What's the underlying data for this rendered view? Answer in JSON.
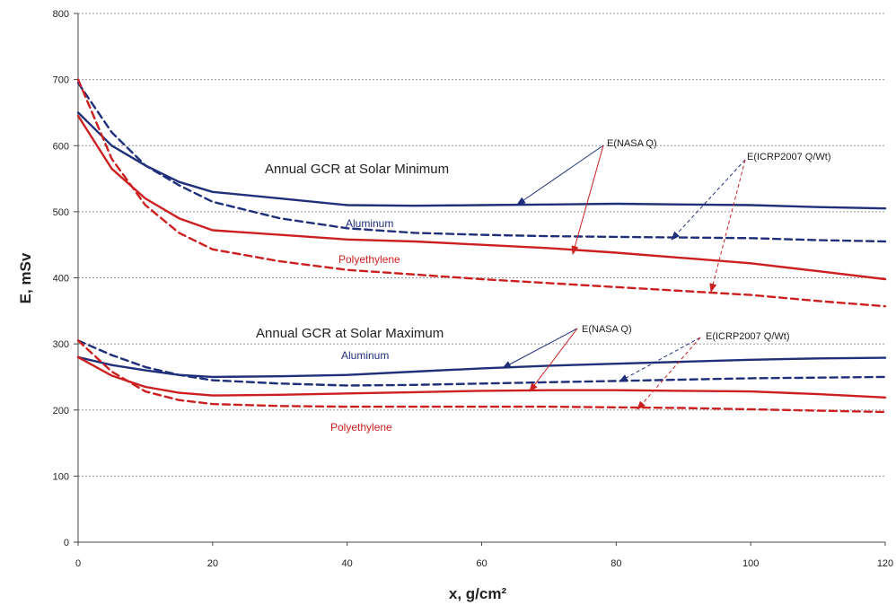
{
  "chart_data": {
    "type": "line",
    "title": "",
    "xlabel": "x, g/cm²",
    "ylabel": "E, mSv",
    "xlim": [
      0,
      120
    ],
    "ylim": [
      0,
      800
    ],
    "x_ticks": [
      0,
      20,
      40,
      60,
      80,
      100,
      120
    ],
    "y_ticks": [
      0,
      100,
      200,
      300,
      400,
      500,
      600,
      700,
      800
    ],
    "grid": "horizontal, dashed",
    "legend": "none (inline annotations)",
    "colors": {
      "aluminum": "#1f2f7a",
      "polyethylene": "#cc1f1f"
    },
    "series": [
      {
        "group": "Annual GCR at Solar Minimum",
        "material": "Aluminum",
        "quantity": "E(NASA Q)",
        "style": "solid",
        "color": "#1f2f7a",
        "x": [
          0,
          5,
          10,
          15,
          20,
          30,
          40,
          50,
          60,
          70,
          80,
          90,
          100,
          110,
          120
        ],
        "y": [
          650,
          600,
          570,
          545,
          530,
          520,
          510,
          509,
          510,
          511,
          512,
          511,
          510,
          507,
          505
        ]
      },
      {
        "group": "Annual GCR at Solar Minimum",
        "material": "Aluminum",
        "quantity": "E(ICRP2007 Q/Wt)",
        "style": "dashed",
        "color": "#1f2f7a",
        "x": [
          0,
          5,
          10,
          15,
          20,
          30,
          40,
          50,
          60,
          70,
          80,
          90,
          100,
          110,
          120
        ],
        "y": [
          695,
          620,
          570,
          540,
          515,
          490,
          475,
          468,
          465,
          463,
          462,
          461,
          460,
          457,
          455
        ]
      },
      {
        "group": "Annual GCR at Solar Minimum",
        "material": "Polyethylene",
        "quantity": "E(NASA Q)",
        "style": "solid",
        "color": "#cc1f1f",
        "x": [
          0,
          5,
          10,
          15,
          20,
          30,
          40,
          50,
          60,
          70,
          80,
          90,
          100,
          110,
          120
        ],
        "y": [
          645,
          565,
          520,
          490,
          472,
          465,
          458,
          455,
          450,
          445,
          438,
          430,
          422,
          410,
          398
        ]
      },
      {
        "group": "Annual GCR at Solar Minimum",
        "material": "Polyethylene",
        "quantity": "E(ICRP2007 Q/Wt)",
        "style": "dashed",
        "color": "#cc1f1f",
        "x": [
          0,
          5,
          10,
          15,
          20,
          30,
          40,
          50,
          60,
          70,
          80,
          90,
          100,
          110,
          120
        ],
        "y": [
          700,
          580,
          510,
          468,
          443,
          425,
          412,
          405,
          398,
          392,
          386,
          380,
          374,
          365,
          357
        ]
      },
      {
        "group": "Annual GCR at Solar Maximum",
        "material": "Aluminum",
        "quantity": "E(NASA Q)",
        "style": "solid",
        "color": "#1f2f7a",
        "x": [
          0,
          5,
          10,
          15,
          20,
          30,
          40,
          50,
          60,
          70,
          80,
          90,
          100,
          110,
          120
        ],
        "y": [
          280,
          268,
          260,
          253,
          250,
          251,
          253,
          258,
          263,
          267,
          270,
          273,
          276,
          278,
          279
        ]
      },
      {
        "group": "Annual GCR at Solar Maximum",
        "material": "Aluminum",
        "quantity": "E(ICRP2007 Q/Wt)",
        "style": "dashed",
        "color": "#1f2f7a",
        "x": [
          0,
          5,
          10,
          15,
          20,
          30,
          40,
          50,
          60,
          70,
          80,
          90,
          100,
          110,
          120
        ],
        "y": [
          305,
          283,
          265,
          253,
          245,
          240,
          237,
          238,
          240,
          242,
          244,
          246,
          248,
          249,
          250
        ]
      },
      {
        "group": "Annual GCR at Solar Maximum",
        "material": "Polyethylene",
        "quantity": "E(NASA Q)",
        "style": "solid",
        "color": "#cc1f1f",
        "x": [
          0,
          5,
          10,
          15,
          20,
          30,
          40,
          50,
          60,
          70,
          80,
          90,
          100,
          110,
          120
        ],
        "y": [
          280,
          252,
          235,
          226,
          222,
          223,
          225,
          227,
          229,
          230,
          230,
          229,
          228,
          224,
          219
        ]
      },
      {
        "group": "Annual GCR at Solar Maximum",
        "material": "Polyethylene",
        "quantity": "E(ICRP2007 Q/Wt)",
        "style": "dashed",
        "color": "#cc1f1f",
        "x": [
          0,
          5,
          10,
          15,
          20,
          30,
          40,
          50,
          60,
          70,
          80,
          90,
          100,
          110,
          120
        ],
        "y": [
          305,
          258,
          228,
          215,
          209,
          206,
          205,
          205,
          205,
          205,
          204,
          203,
          201,
          199,
          197
        ]
      }
    ],
    "annotations": {
      "min_title": "Annual GCR at Solar Minimum",
      "max_title": "Annual GCR at Solar Maximum",
      "aluminum_min": "Aluminum",
      "poly_min": "Polyethylene",
      "aluminum_max": "Aluminum",
      "poly_max": "Polyethylene",
      "nasa_min": "E(NASA Q)",
      "icrp_min": "E(ICRP2007 Q/Wt)",
      "nasa_max": "E(NASA Q)",
      "icrp_max": "E(ICRP2007 Q/Wt)"
    }
  }
}
